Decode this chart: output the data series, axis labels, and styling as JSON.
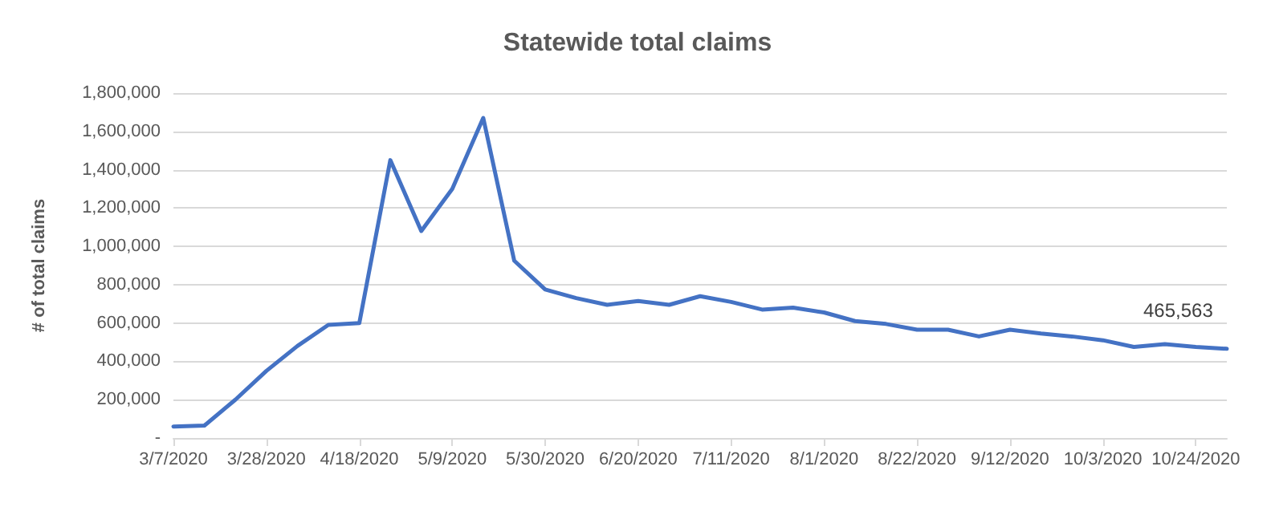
{
  "chart_data": {
    "type": "line",
    "title": "Statewide total claims",
    "ylabel": "# of total claims",
    "categories": [
      "3/7/2020",
      null,
      null,
      "3/28/2020",
      null,
      null,
      "4/18/2020",
      null,
      null,
      "5/9/2020",
      null,
      null,
      "5/30/2020",
      null,
      null,
      "6/20/2020",
      null,
      null,
      "7/11/2020",
      null,
      null,
      "8/1/2020",
      null,
      null,
      "8/22/2020",
      null,
      null,
      "9/12/2020",
      null,
      null,
      "10/3/2020",
      null,
      null,
      "10/24/2020",
      null
    ],
    "series": [
      {
        "color": "#4472c4",
        "values": [
          60000,
          65000,
          200000,
          350000,
          480000,
          590000,
          600000,
          1450000,
          1080000,
          1300000,
          1670000,
          925000,
          775000,
          730000,
          695000,
          715000,
          695000,
          740000,
          710000,
          670000,
          680000,
          655000,
          610000,
          595000,
          565000,
          565000,
          530000,
          565000,
          545000,
          530000,
          510000,
          475000,
          490000,
          475000,
          465563
        ],
        "value_labels": [
          null,
          null,
          null,
          null,
          null,
          null,
          null,
          null,
          null,
          null,
          null,
          null,
          null,
          null,
          null,
          null,
          null,
          null,
          null,
          null,
          null,
          null,
          null,
          null,
          null,
          null,
          null,
          null,
          null,
          null,
          null,
          null,
          null,
          null,
          "465,563"
        ]
      }
    ],
    "ylim": [
      0,
      1800000
    ],
    "yticks": [
      {
        "value": 0,
        "label": "-"
      },
      {
        "value": 200000,
        "label": "200,000"
      },
      {
        "value": 400000,
        "label": "400,000"
      },
      {
        "value": 600000,
        "label": "600,000"
      },
      {
        "value": 800000,
        "label": "800,000"
      },
      {
        "value": 1000000,
        "label": "1,000,000"
      },
      {
        "value": 1200000,
        "label": "1,200,000"
      },
      {
        "value": 1400000,
        "label": "1,400,000"
      },
      {
        "value": 1600000,
        "label": "1,600,000"
      },
      {
        "value": 1800000,
        "label": "1,800,000"
      }
    ],
    "grid": "y",
    "marker": "none",
    "line_style": "solid"
  }
}
